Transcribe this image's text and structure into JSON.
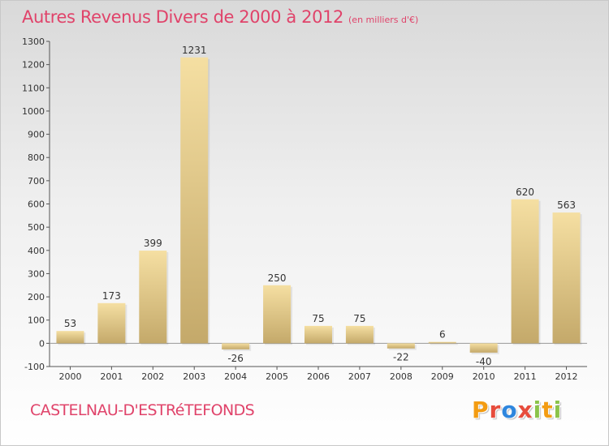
{
  "header": {
    "title": "Autres Revenus Divers de 2000 à 2012",
    "unit": "(en milliers d'€)"
  },
  "footer": {
    "commune": "CASTELNAU-D'ESTRéTEFONDS",
    "logo_text": "Proxiti"
  },
  "colors": {
    "title": "#e0436a",
    "bar_light": "#f5dfa2",
    "bar_dark": "#c4a96a",
    "axis": "#555555"
  },
  "chart_data": {
    "type": "bar",
    "title": "Autres Revenus Divers de 2000 à 2012",
    "subtitle": "(en milliers d'€)",
    "xlabel": "",
    "ylabel": "",
    "categories": [
      "2000",
      "2001",
      "2002",
      "2003",
      "2004",
      "2005",
      "2006",
      "2007",
      "2008",
      "2009",
      "2010",
      "2011",
      "2012"
    ],
    "values": [
      53,
      173,
      399,
      1231,
      -26,
      250,
      75,
      75,
      -22,
      6,
      -40,
      620,
      563
    ],
    "ylim": [
      -100,
      1300
    ],
    "yticks": [
      -100,
      0,
      100,
      200,
      300,
      400,
      500,
      600,
      700,
      800,
      900,
      1000,
      1100,
      1200,
      1300
    ],
    "grid": false,
    "legend": "none"
  }
}
